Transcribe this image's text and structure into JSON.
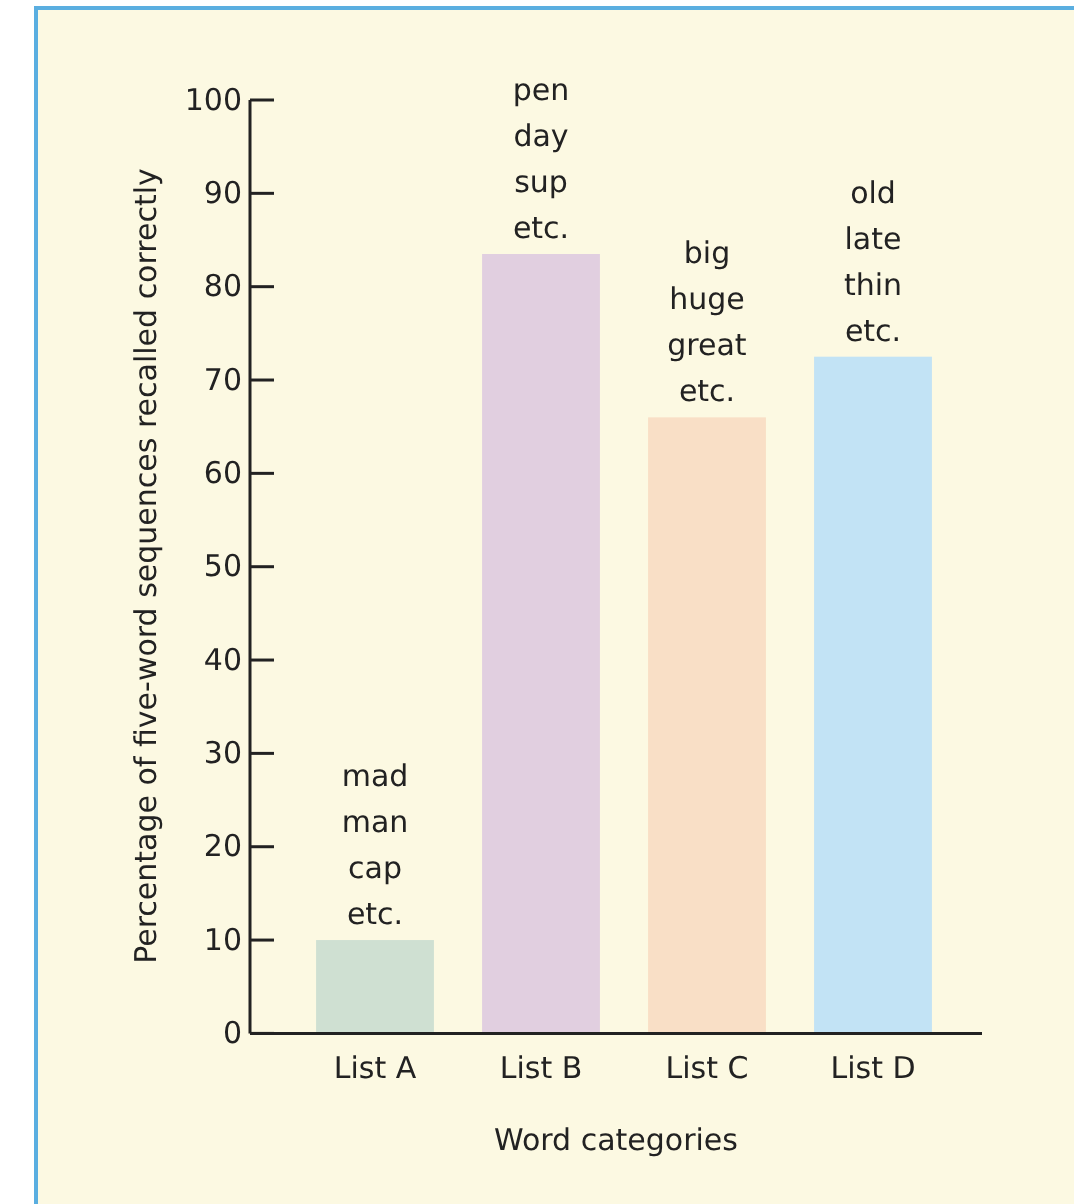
{
  "chart_data": {
    "type": "bar",
    "xlabel": "Word categories",
    "ylabel": "Percentage of five-word sequences recalled correctly",
    "categories": [
      "List A",
      "List B",
      "List C",
      "List D"
    ],
    "values": [
      10,
      83.5,
      66,
      72.5
    ],
    "colors": [
      "#cfe0d2",
      "#e1cfe0",
      "#f9dfc6",
      "#c2e3f5"
    ],
    "ylim": [
      0,
      100
    ],
    "yticks": [
      0,
      10,
      20,
      30,
      40,
      50,
      60,
      70,
      80,
      90,
      100
    ],
    "grid": false,
    "annotations": [
      {
        "text": "mad\nman\ncap\netc.",
        "x": "List A",
        "y": 10
      },
      {
        "text": "pen\nday\nsup\netc.",
        "x": "List B",
        "y": 83.5
      },
      {
        "text": "big\nhuge\ngreat\netc.",
        "x": "List C",
        "y": 66
      },
      {
        "text": "old\nlate\nthin\netc.",
        "x": "List D",
        "y": 72.5
      }
    ]
  }
}
